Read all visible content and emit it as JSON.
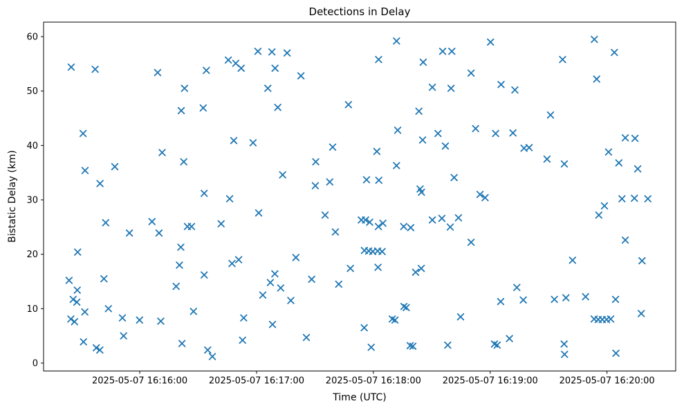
{
  "chart_data": {
    "type": "scatter",
    "title": "Detections in Delay",
    "xlabel": "Time (UTC)",
    "ylabel": "Bistatic Delay (km)",
    "marker": {
      "style": "x",
      "color": "#1f77b4"
    },
    "grid": false,
    "legend": null,
    "x_unit": "seconds after 2025-05-07 16:15:00 UTC",
    "xlim": [
      10.6,
      335.3
    ],
    "ylim": [
      -1.46,
      62.67
    ],
    "x_ticks": [
      {
        "t": 60,
        "label": "2025-05-07 16:16:00"
      },
      {
        "t": 120,
        "label": "2025-05-07 16:17:00"
      },
      {
        "t": 180,
        "label": "2025-05-07 16:18:00"
      },
      {
        "t": 240,
        "label": "2025-05-07 16:19:00"
      },
      {
        "t": 300,
        "label": "2025-05-07 16:20:00"
      }
    ],
    "y_ticks": [
      {
        "v": 0,
        "label": "0"
      },
      {
        "v": 10,
        "label": "10"
      },
      {
        "v": 20,
        "label": "20"
      },
      {
        "v": 30,
        "label": "30"
      },
      {
        "v": 40,
        "label": "40"
      },
      {
        "v": 50,
        "label": "50"
      },
      {
        "v": 60,
        "label": "60"
      }
    ],
    "points": [
      [
        24.8,
        54.4
      ],
      [
        37.1,
        54.0
      ],
      [
        30.9,
        42.2
      ],
      [
        31.9,
        35.4
      ],
      [
        47.2,
        36.1
      ],
      [
        39.6,
        33.0
      ],
      [
        42.5,
        25.8
      ],
      [
        54.7,
        23.9
      ],
      [
        28.1,
        20.4
      ],
      [
        23.7,
        15.2
      ],
      [
        41.6,
        15.5
      ],
      [
        27.9,
        13.4
      ],
      [
        25.8,
        11.7
      ],
      [
        27.7,
        11.2
      ],
      [
        31.8,
        9.4
      ],
      [
        43.9,
        10.0
      ],
      [
        24.6,
        8.1
      ],
      [
        26.5,
        7.6
      ],
      [
        51.1,
        8.3
      ],
      [
        59.9,
        7.9
      ],
      [
        51.7,
        5.0
      ],
      [
        31.1,
        3.9
      ],
      [
        37.7,
        2.8
      ],
      [
        39.5,
        2.4
      ],
      [
        69.2,
        53.4
      ],
      [
        94.2,
        53.8
      ],
      [
        105.5,
        55.7
      ],
      [
        109.3,
        55.1
      ],
      [
        112.1,
        54.2
      ],
      [
        83.0,
        50.5
      ],
      [
        81.3,
        46.4
      ],
      [
        92.6,
        46.9
      ],
      [
        71.5,
        38.7
      ],
      [
        82.6,
        37.0
      ],
      [
        108.3,
        40.9
      ],
      [
        118.2,
        40.5
      ],
      [
        93.1,
        31.2
      ],
      [
        106.2,
        30.2
      ],
      [
        66.3,
        26.0
      ],
      [
        84.5,
        25.1
      ],
      [
        86.6,
        25.1
      ],
      [
        101.8,
        25.6
      ],
      [
        69.9,
        23.9
      ],
      [
        81.1,
        21.3
      ],
      [
        80.4,
        18.0
      ],
      [
        110.8,
        19.0
      ],
      [
        107.4,
        18.3
      ],
      [
        93.1,
        16.2
      ],
      [
        78.7,
        14.1
      ],
      [
        87.6,
        9.5
      ],
      [
        70.8,
        7.7
      ],
      [
        113.4,
        8.3
      ],
      [
        81.7,
        3.6
      ],
      [
        94.9,
        2.4
      ],
      [
        97.3,
        1.2
      ],
      [
        112.8,
        4.2
      ],
      [
        120.7,
        57.3
      ],
      [
        127.9,
        57.2
      ],
      [
        135.7,
        57.0
      ],
      [
        129.5,
        54.2
      ],
      [
        142.8,
        52.8
      ],
      [
        125.8,
        50.5
      ],
      [
        130.9,
        47.0
      ],
      [
        167.2,
        47.5
      ],
      [
        159.1,
        39.7
      ],
      [
        150.4,
        37.0
      ],
      [
        133.4,
        34.6
      ],
      [
        150.2,
        32.6
      ],
      [
        157.6,
        33.3
      ],
      [
        121.1,
        27.6
      ],
      [
        155.2,
        27.2
      ],
      [
        160.5,
        24.1
      ],
      [
        140.2,
        19.4
      ],
      [
        129.4,
        16.4
      ],
      [
        127.1,
        14.8
      ],
      [
        148.3,
        15.4
      ],
      [
        162.2,
        14.5
      ],
      [
        132.4,
        13.8
      ],
      [
        123.2,
        12.5
      ],
      [
        137.6,
        11.5
      ],
      [
        128.2,
        7.1
      ],
      [
        145.6,
        4.7
      ],
      [
        168.2,
        17.4
      ],
      [
        191.9,
        59.2
      ],
      [
        215.6,
        57.3
      ],
      [
        220.3,
        57.3
      ],
      [
        182.7,
        55.8
      ],
      [
        205.6,
        55.3
      ],
      [
        210.3,
        50.7
      ],
      [
        219.9,
        50.5
      ],
      [
        203.4,
        46.3
      ],
      [
        192.5,
        42.8
      ],
      [
        213.2,
        42.2
      ],
      [
        205.3,
        41.0
      ],
      [
        217.0,
        39.9
      ],
      [
        181.8,
        38.9
      ],
      [
        191.9,
        36.3
      ],
      [
        176.5,
        33.7
      ],
      [
        182.8,
        33.6
      ],
      [
        204.0,
        32.0
      ],
      [
        204.7,
        31.4
      ],
      [
        221.5,
        34.1
      ],
      [
        173.8,
        26.3
      ],
      [
        176.0,
        26.3
      ],
      [
        178.1,
        25.9
      ],
      [
        182.6,
        25.1
      ],
      [
        184.9,
        25.7
      ],
      [
        195.6,
        25.1
      ],
      [
        199.2,
        24.9
      ],
      [
        210.3,
        26.3
      ],
      [
        215.2,
        26.6
      ],
      [
        223.7,
        26.7
      ],
      [
        219.5,
        25.0
      ],
      [
        175.4,
        20.7
      ],
      [
        177.6,
        20.6
      ],
      [
        179.7,
        20.5
      ],
      [
        182.2,
        20.6
      ],
      [
        184.5,
        20.5
      ],
      [
        182.4,
        17.6
      ],
      [
        201.7,
        16.7
      ],
      [
        204.6,
        17.4
      ],
      [
        195.7,
        10.4
      ],
      [
        196.9,
        10.2
      ],
      [
        189.7,
        8.1
      ],
      [
        191.1,
        7.9
      ],
      [
        175.3,
        6.5
      ],
      [
        224.8,
        8.5
      ],
      [
        198.9,
        3.2
      ],
      [
        200.3,
        3.1
      ],
      [
        218.2,
        3.3
      ],
      [
        178.9,
        2.9
      ],
      [
        240.2,
        59.0
      ],
      [
        277.2,
        55.8
      ],
      [
        230.2,
        53.3
      ],
      [
        245.6,
        51.2
      ],
      [
        252.7,
        50.2
      ],
      [
        271.0,
        45.6
      ],
      [
        232.5,
        43.1
      ],
      [
        242.8,
        42.2
      ],
      [
        251.7,
        42.3
      ],
      [
        257.4,
        39.5
      ],
      [
        260.0,
        39.6
      ],
      [
        269.2,
        37.5
      ],
      [
        278.1,
        36.6
      ],
      [
        234.8,
        31.0
      ],
      [
        237.4,
        30.4
      ],
      [
        230.2,
        22.2
      ],
      [
        282.3,
        18.9
      ],
      [
        253.7,
        13.9
      ],
      [
        245.4,
        11.3
      ],
      [
        257.0,
        11.6
      ],
      [
        273.0,
        11.7
      ],
      [
        278.9,
        12.0
      ],
      [
        249.9,
        4.5
      ],
      [
        242.2,
        3.5
      ],
      [
        243.6,
        3.3
      ],
      [
        278.0,
        3.5
      ],
      [
        278.2,
        1.6
      ],
      [
        293.5,
        59.5
      ],
      [
        303.8,
        57.1
      ],
      [
        294.7,
        52.2
      ],
      [
        309.4,
        41.4
      ],
      [
        314.4,
        41.3
      ],
      [
        300.8,
        38.8
      ],
      [
        306.1,
        36.8
      ],
      [
        315.8,
        35.7
      ],
      [
        307.7,
        30.2
      ],
      [
        314.1,
        30.3
      ],
      [
        321.0,
        30.2
      ],
      [
        298.7,
        28.9
      ],
      [
        295.8,
        27.2
      ],
      [
        309.4,
        22.6
      ],
      [
        318.0,
        18.8
      ],
      [
        289.0,
        12.2
      ],
      [
        304.4,
        11.7
      ],
      [
        317.6,
        9.1
      ],
      [
        293.4,
        8.1
      ],
      [
        295.5,
        8.0
      ],
      [
        297.6,
        8.0
      ],
      [
        299.8,
        8.0
      ],
      [
        301.9,
        8.1
      ],
      [
        304.6,
        1.8
      ]
    ]
  }
}
